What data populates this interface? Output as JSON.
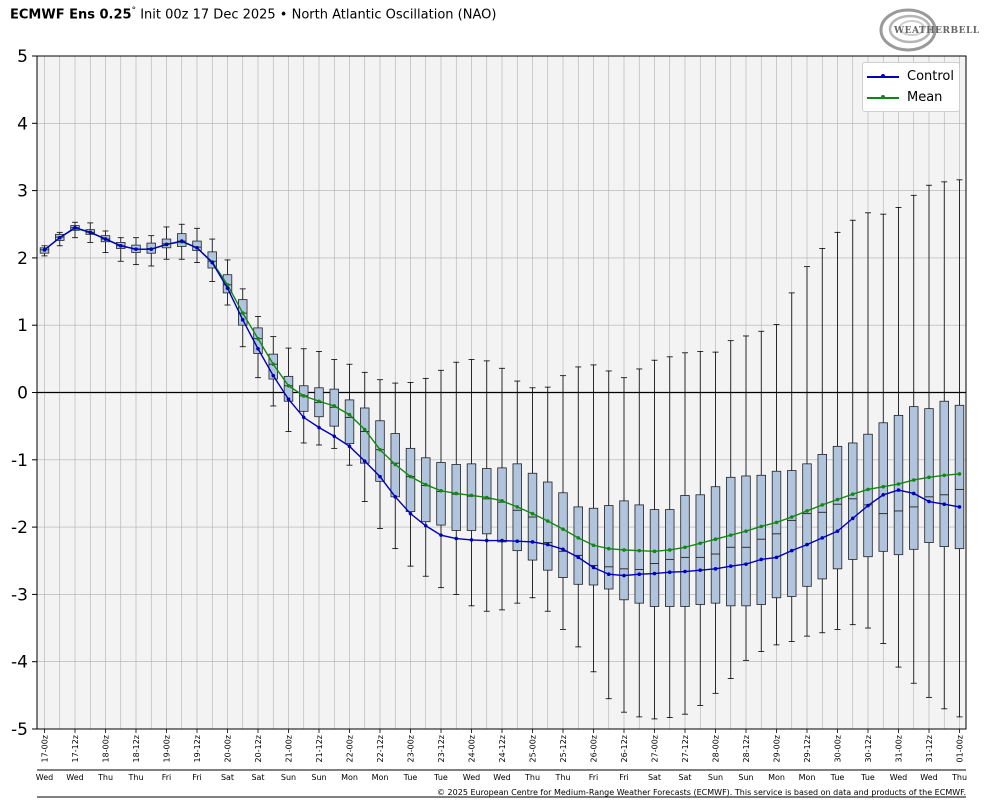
{
  "header": {
    "model": "ECMWF Ens 0.25",
    "degree": "°",
    "rest": "Init 00z 17 Dec 2025 • North Atlantic Oscillation (NAO)"
  },
  "logo": {
    "text": "WEATHERBELL"
  },
  "footer": {
    "copyright": "© 2025 European Centre for Medium-Range Weather Forecasts (ECMWF). This service is based on data and products of the ECMWF."
  },
  "colors": {
    "control": "#0000bb",
    "mean": "#118811",
    "box_fill": "#b0c4de",
    "plot_bg": "#f3f3f3",
    "grid": "#b0b0b0"
  },
  "chart_data": {
    "type": "box",
    "title": "",
    "ylim": [
      -5,
      5
    ],
    "yticks": [
      5,
      4,
      3,
      2,
      1,
      0,
      -1,
      -2,
      -3,
      -4,
      -5
    ],
    "grid": true,
    "legend_position": "top-right",
    "x": [
      "17-00z",
      "17-06z",
      "17-12z",
      "17-18z",
      "18-00z",
      "18-06z",
      "18-12z",
      "18-18z",
      "19-00z",
      "19-06z",
      "19-12z",
      "19-18z",
      "20-00z",
      "20-06z",
      "20-12z",
      "20-18z",
      "21-00z",
      "21-06z",
      "21-12z",
      "21-18z",
      "22-00z",
      "22-06z",
      "22-12z",
      "22-18z",
      "23-00z",
      "23-06z",
      "23-12z",
      "23-18z",
      "24-00z",
      "24-06z",
      "24-12z",
      "24-18z",
      "25-00z",
      "25-06z",
      "25-12z",
      "25-18z",
      "26-00z",
      "26-06z",
      "26-12z",
      "26-18z",
      "27-00z",
      "27-06z",
      "27-12z",
      "27-18z",
      "28-00z",
      "28-06z",
      "28-12z",
      "28-18z",
      "29-00z",
      "29-06z",
      "29-12z",
      "29-18z",
      "30-00z",
      "30-06z",
      "30-12z",
      "30-18z",
      "31-00z",
      "31-06z",
      "31-12z",
      "31-18z",
      "01-00z"
    ],
    "x_tick_labels": [
      "17-00z",
      "17-12z",
      "18-00z",
      "18-12z",
      "19-00z",
      "19-12z",
      "20-00z",
      "20-12z",
      "21-00z",
      "21-12z",
      "22-00z",
      "22-12z",
      "23-00z",
      "23-12z",
      "24-00z",
      "24-12z",
      "25-00z",
      "25-12z",
      "26-00z",
      "26-12z",
      "27-00z",
      "27-12z",
      "28-00z",
      "28-12z",
      "29-00z",
      "29-12z",
      "30-00z",
      "30-12z",
      "31-00z",
      "31-12z",
      "01-00z"
    ],
    "x_day_labels": [
      "Wed",
      "Wed",
      "Thu",
      "Thu",
      "Fri",
      "Fri",
      "Sat",
      "Sat",
      "Sun",
      "Sun",
      "Mon",
      "Mon",
      "Tue",
      "Tue",
      "Wed",
      "Wed",
      "Thu",
      "Thu",
      "Fri",
      "Fri",
      "Sat",
      "Sat",
      "Sun",
      "Sun",
      "Mon",
      "Mon",
      "Tue",
      "Tue",
      "Wed",
      "Wed",
      "Thu"
    ],
    "series": [
      {
        "name": "Control",
        "values": [
          2.12,
          2.3,
          2.45,
          2.38,
          2.28,
          2.18,
          2.13,
          2.13,
          2.2,
          2.25,
          2.15,
          1.93,
          1.55,
          1.08,
          0.65,
          0.25,
          -0.1,
          -0.37,
          -0.52,
          -0.65,
          -0.8,
          -1.02,
          -1.25,
          -1.55,
          -1.8,
          -1.98,
          -2.12,
          -2.17,
          -2.19,
          -2.2,
          -2.2,
          -2.21,
          -2.22,
          -2.26,
          -2.33,
          -2.45,
          -2.6,
          -2.7,
          -2.72,
          -2.7,
          -2.69,
          -2.67,
          -2.66,
          -2.64,
          -2.62,
          -2.58,
          -2.55,
          -2.48,
          -2.45,
          -2.35,
          -2.26,
          -2.16,
          -2.06,
          -1.87,
          -1.68,
          -1.52,
          -1.45,
          -1.5,
          -1.62,
          -1.66,
          -1.7
        ]
      },
      {
        "name": "Mean",
        "values": [
          2.12,
          2.3,
          2.44,
          2.38,
          2.28,
          2.18,
          2.13,
          2.13,
          2.2,
          2.24,
          2.15,
          1.94,
          1.6,
          1.18,
          0.8,
          0.42,
          0.1,
          -0.05,
          -0.13,
          -0.2,
          -0.33,
          -0.55,
          -0.85,
          -1.07,
          -1.25,
          -1.37,
          -1.46,
          -1.5,
          -1.53,
          -1.56,
          -1.61,
          -1.7,
          -1.8,
          -1.91,
          -2.03,
          -2.16,
          -2.27,
          -2.32,
          -2.34,
          -2.35,
          -2.36,
          -2.34,
          -2.3,
          -2.24,
          -2.18,
          -2.12,
          -2.06,
          -1.99,
          -1.93,
          -1.85,
          -1.76,
          -1.67,
          -1.59,
          -1.51,
          -1.44,
          -1.4,
          -1.36,
          -1.3,
          -1.26,
          -1.23,
          -1.21
        ]
      }
    ],
    "boxes": {
      "min": [
        2.03,
        2.18,
        2.3,
        2.23,
        2.08,
        1.95,
        1.9,
        1.88,
        1.98,
        1.98,
        1.93,
        1.65,
        1.3,
        0.68,
        0.22,
        -0.2,
        -0.58,
        -0.75,
        -0.78,
        -0.83,
        -1.08,
        -1.62,
        -2.02,
        -2.32,
        -2.58,
        -2.73,
        -2.9,
        -3.0,
        -3.17,
        -3.25,
        -3.23,
        -3.13,
        -3.05,
        -3.25,
        -3.52,
        -3.78,
        -4.15,
        -4.55,
        -4.75,
        -4.82,
        -4.85,
        -4.83,
        -4.78,
        -4.65,
        -4.47,
        -4.25,
        -3.98,
        -3.85,
        -3.75,
        -3.7,
        -3.62,
        -3.57,
        -3.52,
        -3.45,
        -3.5,
        -3.73,
        -4.08,
        -4.32,
        -4.53,
        -4.7,
        -4.82
      ],
      "q1": [
        2.07,
        2.26,
        2.41,
        2.35,
        2.24,
        2.14,
        2.08,
        2.07,
        2.15,
        2.17,
        2.11,
        1.85,
        1.48,
        1.0,
        0.58,
        0.2,
        -0.13,
        -0.28,
        -0.36,
        -0.5,
        -0.76,
        -1.05,
        -1.32,
        -1.55,
        -1.77,
        -1.92,
        -1.97,
        -2.05,
        -2.05,
        -2.1,
        -2.22,
        -2.35,
        -2.49,
        -2.64,
        -2.75,
        -2.85,
        -2.86,
        -2.92,
        -3.08,
        -3.13,
        -3.18,
        -3.18,
        -3.18,
        -3.15,
        -3.13,
        -3.17,
        -3.17,
        -3.15,
        -3.05,
        -3.03,
        -2.88,
        -2.77,
        -2.62,
        -2.48,
        -2.44,
        -2.36,
        -2.41,
        -2.33,
        -2.23,
        -2.29,
        -2.32
      ],
      "median": [
        2.12,
        2.31,
        2.45,
        2.38,
        2.28,
        2.18,
        2.13,
        2.14,
        2.21,
        2.25,
        2.16,
        1.95,
        1.6,
        1.18,
        0.8,
        0.42,
        0.1,
        -0.05,
        -0.15,
        -0.22,
        -0.37,
        -0.58,
        -0.85,
        -1.05,
        -1.25,
        -1.38,
        -1.47,
        -1.51,
        -1.54,
        -1.58,
        -1.63,
        -1.75,
        -1.85,
        -2.23,
        -2.36,
        -2.42,
        -2.57,
        -2.59,
        -2.62,
        -2.63,
        -2.54,
        -2.48,
        -2.45,
        -2.45,
        -2.4,
        -2.3,
        -2.3,
        -2.18,
        -2.1,
        -1.9,
        -1.8,
        -1.78,
        -1.66,
        -1.58,
        -1.67,
        -1.8,
        -1.76,
        -1.7,
        -1.55,
        -1.52,
        -1.44
      ],
      "q3": [
        2.15,
        2.35,
        2.48,
        2.42,
        2.33,
        2.23,
        2.19,
        2.22,
        2.28,
        2.36,
        2.25,
        2.09,
        1.75,
        1.38,
        0.96,
        0.57,
        0.24,
        0.1,
        0.07,
        0.05,
        -0.11,
        -0.23,
        -0.42,
        -0.61,
        -0.83,
        -0.97,
        -1.04,
        -1.07,
        -1.06,
        -1.13,
        -1.12,
        -1.06,
        -1.2,
        -1.33,
        -1.49,
        -1.7,
        -1.72,
        -1.68,
        -1.61,
        -1.67,
        -1.74,
        -1.74,
        -1.53,
        -1.52,
        -1.4,
        -1.26,
        -1.24,
        -1.23,
        -1.17,
        -1.16,
        -1.06,
        -0.92,
        -0.8,
        -0.75,
        -0.62,
        -0.45,
        -0.34,
        -0.21,
        -0.24,
        -0.13,
        -0.19
      ],
      "max": [
        2.18,
        2.38,
        2.53,
        2.52,
        2.4,
        2.3,
        2.3,
        2.33,
        2.46,
        2.5,
        2.44,
        2.28,
        1.97,
        1.54,
        1.13,
        0.83,
        0.66,
        0.65,
        0.61,
        0.49,
        0.42,
        0.3,
        0.19,
        0.14,
        0.15,
        0.21,
        0.33,
        0.45,
        0.49,
        0.47,
        0.36,
        0.17,
        0.07,
        0.08,
        0.25,
        0.38,
        0.41,
        0.32,
        0.22,
        0.35,
        0.48,
        0.53,
        0.59,
        0.61,
        0.6,
        0.77,
        0.84,
        0.91,
        1.01,
        1.48,
        1.87,
        2.14,
        2.38,
        2.56,
        2.67,
        2.65,
        2.75,
        2.93,
        3.08,
        3.13,
        3.16
      ]
    }
  }
}
